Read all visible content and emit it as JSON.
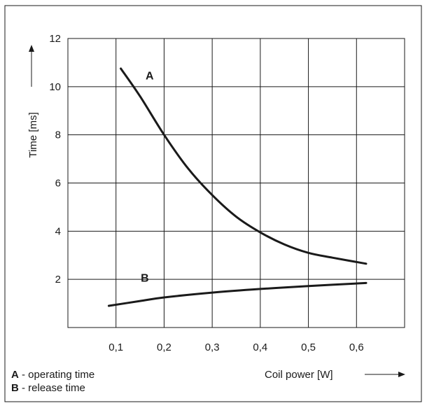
{
  "chart_data": {
    "type": "line",
    "xlabel": "Coil power [W]",
    "ylabel": "Time [ms]",
    "xlim": [
      0,
      0.7
    ],
    "ylim": [
      0,
      12
    ],
    "grid": true,
    "x_ticks": [
      0.1,
      0.2,
      0.3,
      0.4,
      0.5,
      0.6
    ],
    "x_tick_labels": [
      "0,1",
      "0,2",
      "0,3",
      "0,4",
      "0,5",
      "0,6"
    ],
    "y_ticks": [
      2,
      4,
      6,
      8,
      10,
      12
    ],
    "y_tick_labels": [
      "2",
      "4",
      "6",
      "8",
      "10",
      "12"
    ],
    "series": [
      {
        "name": "A",
        "x": [
          0.11,
          0.15,
          0.2,
          0.25,
          0.3,
          0.35,
          0.4,
          0.45,
          0.5,
          0.55,
          0.62
        ],
        "values": [
          10.75,
          9.6,
          8.0,
          6.6,
          5.5,
          4.6,
          3.95,
          3.45,
          3.1,
          2.9,
          2.65
        ],
        "label_x": 0.17,
        "label_y": 10.3
      },
      {
        "name": "B",
        "x": [
          0.085,
          0.15,
          0.2,
          0.3,
          0.4,
          0.5,
          0.62
        ],
        "values": [
          0.9,
          1.1,
          1.25,
          1.45,
          1.6,
          1.72,
          1.85
        ],
        "label_x": 0.16,
        "label_y": 1.9
      }
    ],
    "legend": [
      {
        "key": "A",
        "text": " - operating time"
      },
      {
        "key": "B",
        "text": " - release time"
      }
    ],
    "legend_position": "bottom-left"
  }
}
